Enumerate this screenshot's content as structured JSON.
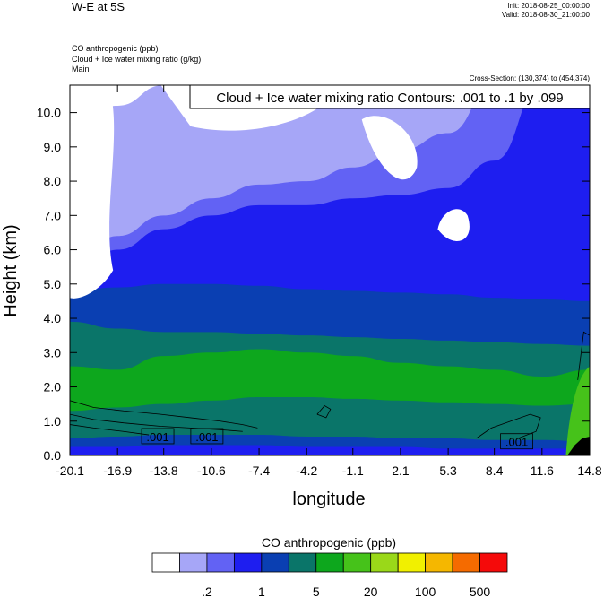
{
  "header": {
    "title": "W-E at 5S",
    "init": "Init: 2018-08-25_00:00:00",
    "valid": "Valid: 2018-08-30_21:00:00",
    "field1": "CO anthropogenic   (ppb)",
    "field2": "Cloud + Ice water mixing ratio   (g/kg)",
    "field3": "Main",
    "cross_section": "Cross-Section: (130,374) to (454,374)"
  },
  "chart_data": {
    "type": "heatmap",
    "title": "W-E at 5S",
    "xlabel": "longitude",
    "ylabel": "Height (km)",
    "x_ticks": [
      "-20.1",
      "-16.9",
      "-13.8",
      "-10.6",
      "-7.4",
      "-4.2",
      "-1.1",
      "2.1",
      "5.3",
      "8.4",
      "11.6",
      "14.8"
    ],
    "x_tick_values": [
      -20.1,
      -16.9,
      -13.8,
      -10.6,
      -7.4,
      -4.2,
      -1.1,
      2.1,
      5.3,
      8.4,
      11.6,
      14.8
    ],
    "y_ticks": [
      "0.0",
      "1.0",
      "2.0",
      "3.0",
      "4.0",
      "5.0",
      "6.0",
      "7.0",
      "8.0",
      "9.0",
      "10.0"
    ],
    "y_tick_values": [
      0,
      1,
      2,
      3,
      4,
      5,
      6,
      7,
      8,
      9,
      10
    ],
    "xlim": [
      -20.1,
      14.8
    ],
    "ylim": [
      0,
      10.8
    ],
    "contour_annotation": "Cloud + Ice water mixing ratio Contours: .001 to .1 by .099",
    "contour_labels": [
      {
        "text": ".001",
        "x": -14.2,
        "y": 0.55
      },
      {
        "text": ".001",
        "x": -10.9,
        "y": 0.55
      },
      {
        "text": ".001",
        "x": 9.9,
        "y": 0.4
      }
    ],
    "colorbar": {
      "title": "CO anthropogenic  (ppb)",
      "colors": [
        "#ffffff",
        "#a6a6f7",
        "#6262f4",
        "#1e1ef0",
        "#0a3fb2",
        "#0a7569",
        "#0da71d",
        "#46c21a",
        "#9ad819",
        "#f1f000",
        "#f5b700",
        "#f56b00",
        "#f50a0a"
      ],
      "labels": [
        ".2",
        "1",
        "5",
        "20",
        "100",
        "500"
      ]
    },
    "bands": [
      {
        "color": "#0a3fb2",
        "top": [
          4.8,
          4.9,
          5.0,
          5.0,
          4.95,
          4.85,
          4.8,
          4.75,
          4.7,
          4.6,
          4.55,
          4.5
        ]
      },
      {
        "color": "#0a7569",
        "top": [
          3.9,
          3.7,
          3.6,
          3.6,
          3.55,
          3.5,
          3.45,
          3.4,
          3.35,
          3.3,
          3.25,
          3.2
        ]
      },
      {
        "color": "#0da71d",
        "top": [
          2.6,
          2.5,
          2.9,
          3.0,
          3.1,
          3.0,
          2.9,
          2.7,
          2.6,
          2.5,
          2.3,
          2.5
        ]
      },
      {
        "color": "#0a7569",
        "top": [
          1.3,
          1.4,
          1.5,
          1.6,
          1.7,
          1.7,
          1.65,
          1.6,
          1.55,
          1.5,
          1.45,
          1.5
        ]
      },
      {
        "color": "#0a3fb2",
        "top": [
          0.5,
          0.55,
          0.6,
          0.6,
          0.6,
          0.55,
          0.55,
          0.5,
          0.5,
          0.45,
          0.45,
          0.4
        ]
      },
      {
        "color": "#1e1ef0",
        "top": [
          0.25,
          0.25,
          0.3,
          0.3,
          0.3,
          0.25,
          0.25,
          0.25,
          0.2,
          0.2,
          0.2,
          0.2
        ]
      }
    ],
    "blue_upper": {
      "color": "#1e1ef0",
      "top": [
        5.2,
        6.0,
        6.6,
        7.0,
        7.3,
        7.3,
        7.5,
        7.6,
        7.8,
        8.6,
        10.8,
        10.8
      ]
    },
    "lav_upper": {
      "color": "#6262f4",
      "top": [
        5.5,
        6.4,
        7.0,
        7.5,
        7.9,
        8.0,
        8.4,
        8.9,
        9.4,
        10.8,
        10.8,
        10.8
      ]
    },
    "lighter_upper": {
      "color": "#a6a6f7",
      "top": [
        9.6,
        10.2,
        10.8,
        10.8,
        10.8,
        10.8,
        10.8,
        10.8,
        10.8,
        10.8,
        10.8,
        10.8
      ]
    }
  }
}
